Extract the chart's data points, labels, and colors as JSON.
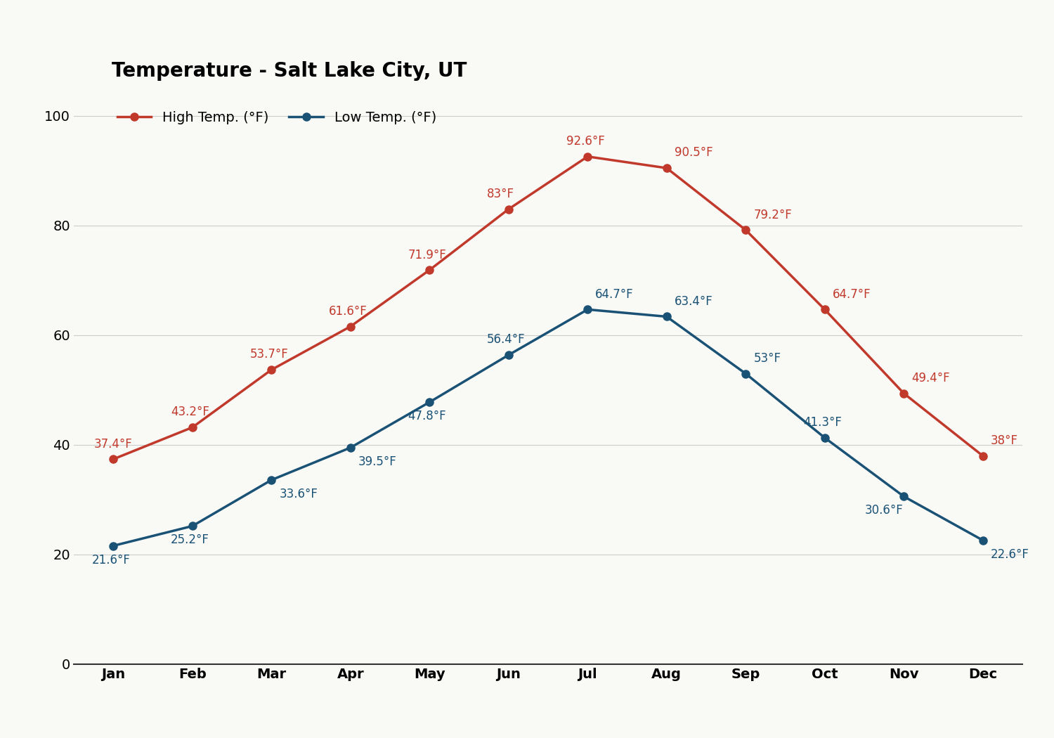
{
  "title": "Temperature - Salt Lake City, UT",
  "months": [
    "Jan",
    "Feb",
    "Mar",
    "Apr",
    "May",
    "Jun",
    "Jul",
    "Aug",
    "Sep",
    "Oct",
    "Nov",
    "Dec"
  ],
  "high_temps": [
    37.4,
    43.2,
    53.7,
    61.6,
    71.9,
    83.0,
    92.6,
    90.5,
    79.2,
    64.7,
    49.4,
    38.0
  ],
  "low_temps": [
    21.6,
    25.2,
    33.6,
    39.5,
    47.8,
    56.4,
    64.7,
    63.4,
    53.0,
    41.3,
    30.6,
    22.6
  ],
  "high_labels": [
    "37.4°F",
    "43.2°F",
    "53.7°F",
    "61.6°F",
    "71.9°F",
    "83°F",
    "92.6°F",
    "90.5°F",
    "79.2°F",
    "64.7°F",
    "49.4°F",
    "38°F"
  ],
  "low_labels": [
    "21.6°F",
    "25.2°F",
    "33.6°F",
    "39.5°F",
    "47.8°F",
    "56.4°F",
    "64.7°F",
    "63.4°F",
    "53°F",
    "41.3°F",
    "30.6°F",
    "22.6°F"
  ],
  "high_color": "#c0392b",
  "low_color": "#1a5276",
  "legend_high": "High Temp. (°F)",
  "legend_low": "Low Temp. (°F)",
  "ylim": [
    0,
    105
  ],
  "yticks": [
    0,
    20,
    40,
    60,
    80,
    100
  ],
  "background_color": "#f9f9f6",
  "grid_color": "#cccccc",
  "title_fontsize": 20,
  "label_fontsize": 12,
  "tick_fontsize": 14,
  "legend_fontsize": 14,
  "line_width": 2.5,
  "marker_size": 8
}
